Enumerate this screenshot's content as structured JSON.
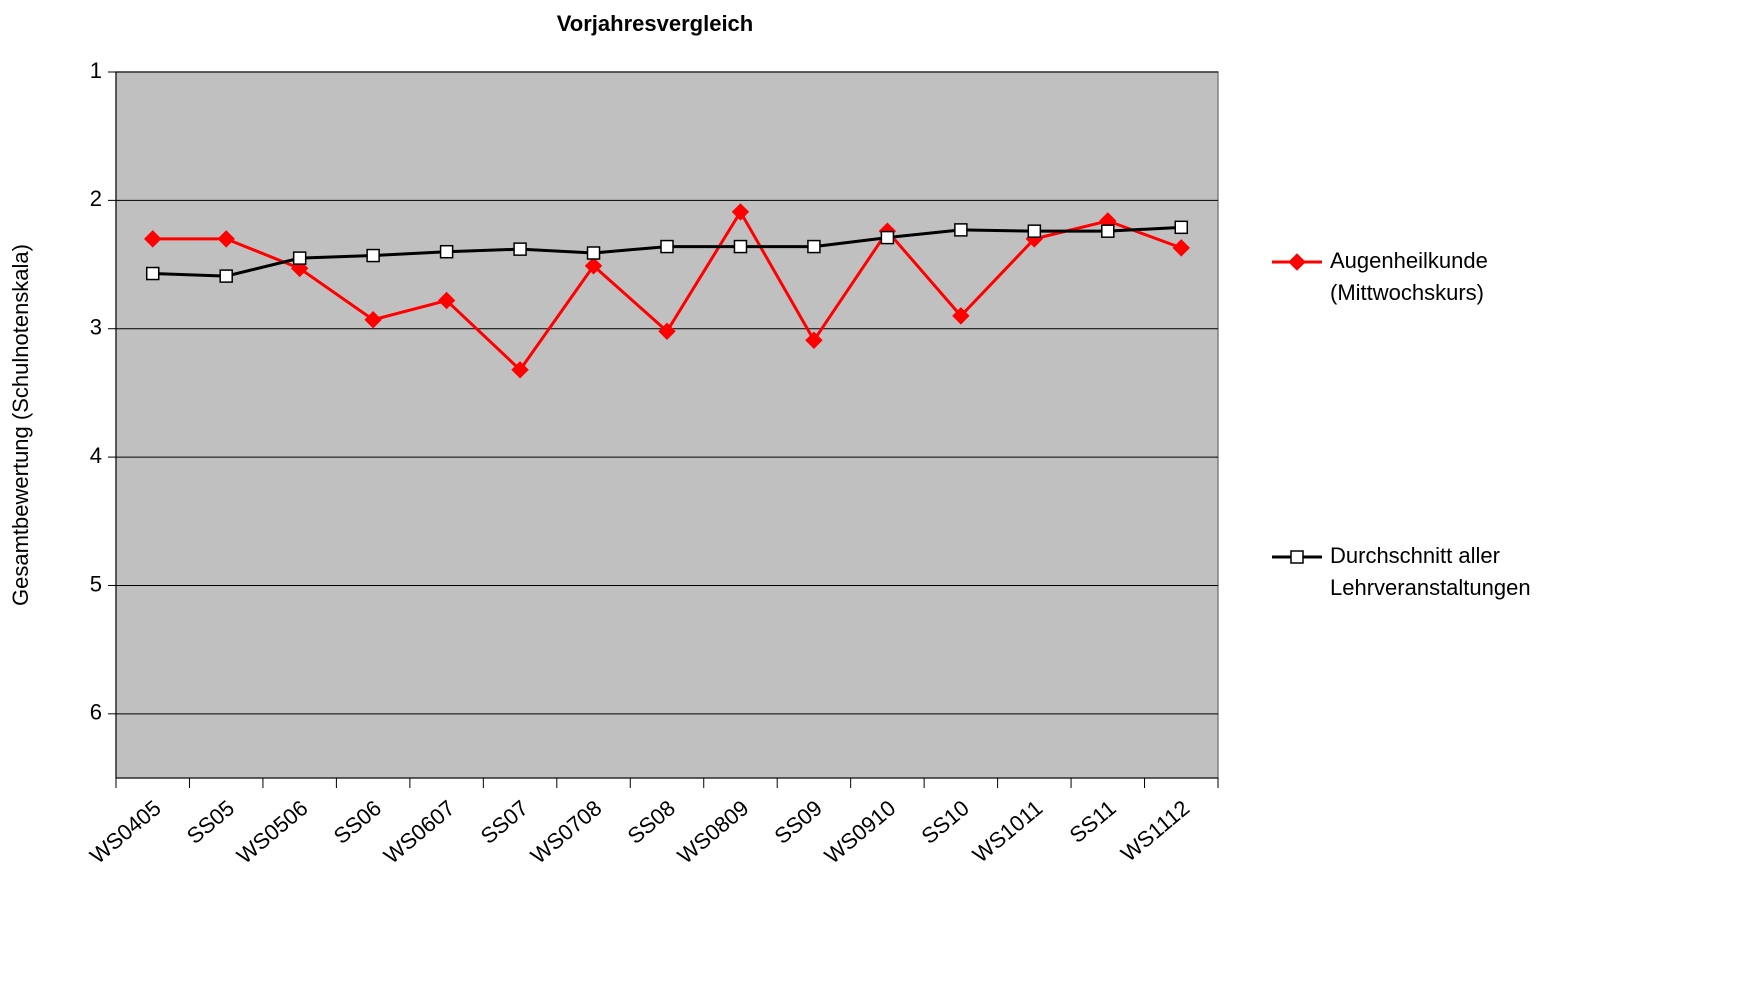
{
  "chart_data": {
    "type": "line",
    "title": "Vorjahresvergleich",
    "y_label": "Gesamtbewertung (Schulnotenskala)",
    "categories": [
      "WS0405",
      "SS05",
      "WS0506",
      "SS06",
      "WS0607",
      "SS07",
      "WS0708",
      "SS08",
      "WS0809",
      "SS09",
      "WS0910",
      "SS10",
      "WS1011",
      "SS11",
      "WS1112"
    ],
    "series": [
      {
        "name": "Augenheilkunde (Mittwochskurs)",
        "color": "#ff0000",
        "marker": "diamond",
        "values": [
          2.3,
          2.3,
          2.53,
          2.93,
          2.78,
          3.32,
          2.51,
          3.02,
          2.09,
          3.09,
          2.24,
          2.9,
          2.3,
          2.16,
          2.37
        ]
      },
      {
        "name": "Durchschnitt aller Lehrveranstaltungen",
        "color": "#000000",
        "marker": "square",
        "values": [
          2.57,
          2.59,
          2.45,
          2.43,
          2.4,
          2.38,
          2.41,
          2.36,
          2.36,
          2.36,
          2.29,
          2.23,
          2.24,
          2.24,
          2.21
        ]
      }
    ],
    "ylim": [
      6.5,
      1
    ],
    "yticks": [
      1,
      2,
      3,
      4,
      5,
      6
    ],
    "grid": true,
    "legend": "right"
  }
}
